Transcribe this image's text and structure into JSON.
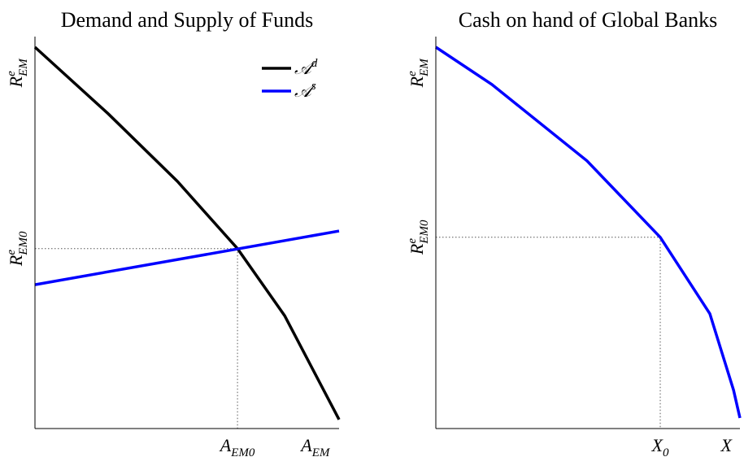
{
  "chart_data": [
    {
      "type": "line",
      "title": "Demand and Supply of Funds",
      "xlim": [
        0,
        100
      ],
      "ylim": [
        0,
        100
      ],
      "xticks": [
        {
          "value": 66.6,
          "label": {
            "base": "A",
            "sub": "EM0"
          }
        },
        {
          "value": 92.2,
          "label": {
            "base": "A",
            "sub": "EM"
          }
        }
      ],
      "yticks": [
        {
          "value": 90.7,
          "label": {
            "base": "R",
            "sup": "e",
            "sub": "EM"
          }
        },
        {
          "value": 45.9,
          "label": {
            "base": "R",
            "sup": "e",
            "sub": "EM0"
          }
        }
      ],
      "legend": "upper right",
      "series": [
        {
          "name": {
            "base": "𝒜",
            "sup": "d"
          },
          "color": "#000000",
          "x": [
            0,
            24.1,
            46.8,
            66.6,
            82.1,
            100
          ],
          "values": [
            97.3,
            80.3,
            63.1,
            45.9,
            28.8,
            2.3
          ]
        },
        {
          "name": {
            "base": "𝒜",
            "sup": "s"
          },
          "color": "#0000ff",
          "x": [
            0,
            100
          ],
          "values": [
            36.7,
            50.4
          ]
        }
      ]
    },
    {
      "type": "line",
      "title": "Cash on hand of Global Banks",
      "xlim": [
        0,
        100
      ],
      "ylim": [
        0,
        100
      ],
      "xticks": [
        {
          "value": 73.8,
          "label": {
            "base": "X",
            "sub": "0"
          }
        },
        {
          "value": 95.5,
          "label": {
            "base": "X"
          }
        }
      ],
      "yticks": [
        {
          "value": 90.7,
          "label": {
            "base": "R",
            "sup": "e",
            "sub": "EM"
          }
        },
        {
          "value": 48.8,
          "label": {
            "base": "R",
            "sup": "e",
            "sub": "EM0"
          }
        }
      ],
      "series": [
        {
          "color": "#0000ff",
          "x": [
            0,
            18.4,
            49.7,
            73.8,
            90.1,
            97.9,
            100
          ],
          "values": [
            97.3,
            87.8,
            68.3,
            48.8,
            29.3,
            9.8,
            2.7
          ]
        }
      ]
    }
  ]
}
